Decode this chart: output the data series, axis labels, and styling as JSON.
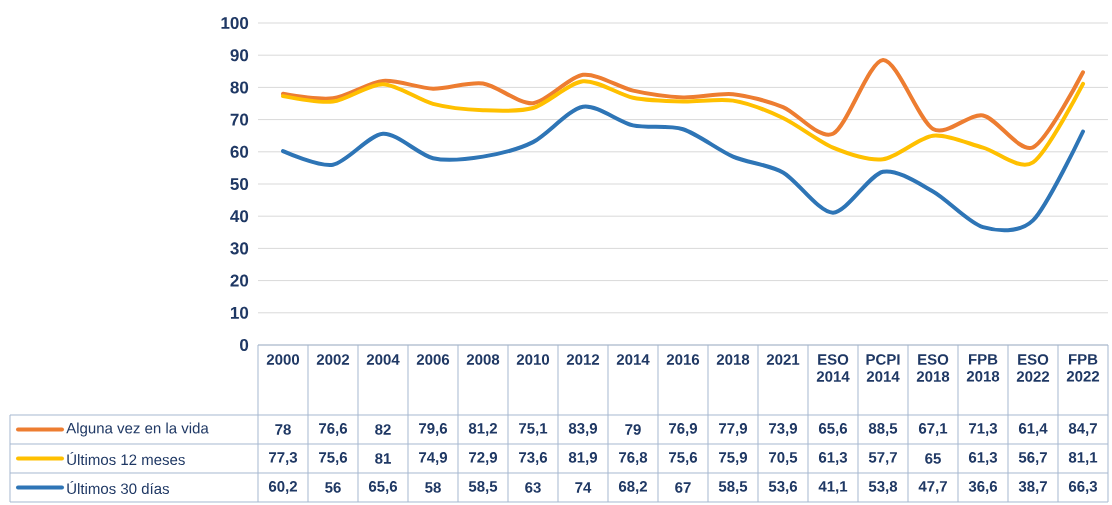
{
  "chart_data": {
    "type": "line",
    "categories": [
      "2000",
      "2002",
      "2004",
      "2006",
      "2008",
      "2010",
      "2012",
      "2014",
      "2016",
      "2018",
      "2021",
      "ESO 2014",
      "PCPI 2014",
      "ESO 2018",
      "FPB 2018",
      "ESO 2022",
      "FPB 2022"
    ],
    "series": [
      {
        "name": "Alguna vez en la vida",
        "color": "#ed7d31",
        "values": [
          78,
          76.6,
          82,
          79.6,
          81.2,
          75.1,
          83.9,
          79,
          76.9,
          77.9,
          73.9,
          65.6,
          88.5,
          67.1,
          71.3,
          61.4,
          84.7
        ],
        "value_labels": [
          "78",
          "76,6",
          "82",
          "79,6",
          "81,2",
          "75,1",
          "83,9",
          "79",
          "76,9",
          "77,9",
          "73,9",
          "65,6",
          "88,5",
          "67,1",
          "71,3",
          "61,4",
          "84,7"
        ]
      },
      {
        "name": "Últimos 12 meses",
        "color": "#ffc000",
        "values": [
          77.3,
          75.6,
          81,
          74.9,
          72.9,
          73.6,
          81.9,
          76.8,
          75.6,
          75.9,
          70.5,
          61.3,
          57.7,
          65,
          61.3,
          56.7,
          81.1
        ],
        "value_labels": [
          "77,3",
          "75,6",
          "81",
          "74,9",
          "72,9",
          "73,6",
          "81,9",
          "76,8",
          "75,6",
          "75,9",
          "70,5",
          "61,3",
          "57,7",
          "65",
          "61,3",
          "56,7",
          "81,1"
        ]
      },
      {
        "name": "Últimos 30 días",
        "color": "#2e75b6",
        "values": [
          60.2,
          56,
          65.6,
          58,
          58.5,
          63,
          74,
          68.2,
          67,
          58.5,
          53.6,
          41.1,
          53.8,
          47.7,
          36.6,
          38.7,
          66.3
        ],
        "value_labels": [
          "60,2",
          "56",
          "65,6",
          "58",
          "58,5",
          "63",
          "74",
          "68,2",
          "67",
          "58,5",
          "53,6",
          "41,1",
          "53,8",
          "47,7",
          "36,6",
          "38,7",
          "66,3"
        ]
      }
    ],
    "ylim": [
      0,
      100
    ],
    "yticks": [
      0,
      10,
      20,
      30,
      40,
      50,
      60,
      70,
      80,
      90,
      100
    ],
    "grid": "y",
    "legend": "bottom",
    "marker": "none",
    "line_style": "solid"
  }
}
